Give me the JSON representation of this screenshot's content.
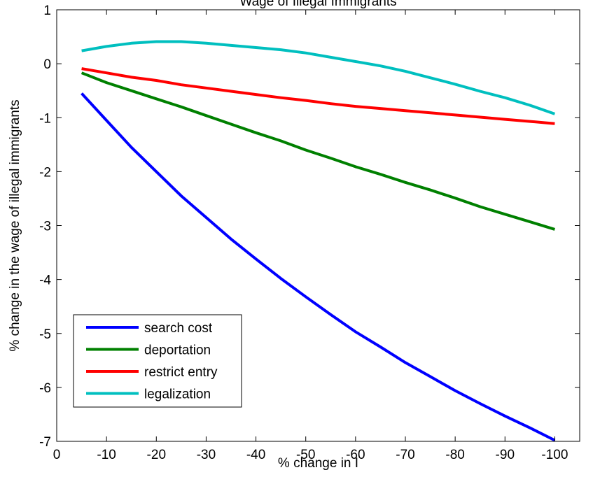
{
  "chart_data": {
    "type": "line",
    "title": "Wage of Illegal Immigrants",
    "xlabel": "% change in I",
    "ylabel": "% change in the wage of illegal immigrants",
    "xlim": [
      0,
      -105
    ],
    "ylim": [
      -7,
      1
    ],
    "xticks": [
      0,
      -10,
      -20,
      -30,
      -40,
      -50,
      -60,
      -70,
      -80,
      -90,
      -100
    ],
    "xtick_labels": [
      "0",
      "-10",
      "-20",
      "-30",
      "-40",
      "-50",
      "-60",
      "-70",
      "-80",
      "-90",
      "-100"
    ],
    "yticks": [
      1,
      0,
      -1,
      -2,
      -3,
      -4,
      -5,
      -6,
      -7
    ],
    "ytick_labels": [
      "1",
      "0",
      "-1",
      "-2",
      "-3",
      "-4",
      "-5",
      "-6",
      "-7"
    ],
    "grid": false,
    "legend_position": "bottom-left",
    "x": [
      -5,
      -10,
      -15,
      -20,
      -25,
      -30,
      -35,
      -40,
      -45,
      -50,
      -55,
      -60,
      -65,
      -70,
      -75,
      -80,
      -85,
      -90,
      -95,
      -100
    ],
    "series": [
      {
        "name": "search cost",
        "color": "#0000ff",
        "values": [
          -0.55,
          -1.05,
          -1.55,
          -2.0,
          -2.45,
          -2.85,
          -3.25,
          -3.62,
          -3.98,
          -4.32,
          -4.65,
          -4.97,
          -5.25,
          -5.54,
          -5.8,
          -6.06,
          -6.3,
          -6.53,
          -6.75,
          -6.98
        ]
      },
      {
        "name": "deportation",
        "color": "#008000",
        "values": [
          -0.17,
          -0.35,
          -0.5,
          -0.65,
          -0.8,
          -0.96,
          -1.12,
          -1.28,
          -1.43,
          -1.6,
          -1.75,
          -1.91,
          -2.05,
          -2.2,
          -2.34,
          -2.49,
          -2.65,
          -2.79,
          -2.93,
          -3.07
        ]
      },
      {
        "name": "restrict entry",
        "color": "#ff0000",
        "values": [
          -0.09,
          -0.17,
          -0.25,
          -0.31,
          -0.39,
          -0.45,
          -0.51,
          -0.57,
          -0.63,
          -0.68,
          -0.74,
          -0.79,
          -0.83,
          -0.87,
          -0.91,
          -0.95,
          -0.99,
          -1.03,
          -1.07,
          -1.11
        ]
      },
      {
        "name": "legalization",
        "color": "#00bfbf",
        "values": [
          0.24,
          0.32,
          0.38,
          0.41,
          0.41,
          0.38,
          0.34,
          0.3,
          0.26,
          0.2,
          0.12,
          0.04,
          -0.04,
          -0.14,
          -0.26,
          -0.38,
          -0.51,
          -0.63,
          -0.77,
          -0.93
        ]
      }
    ]
  }
}
